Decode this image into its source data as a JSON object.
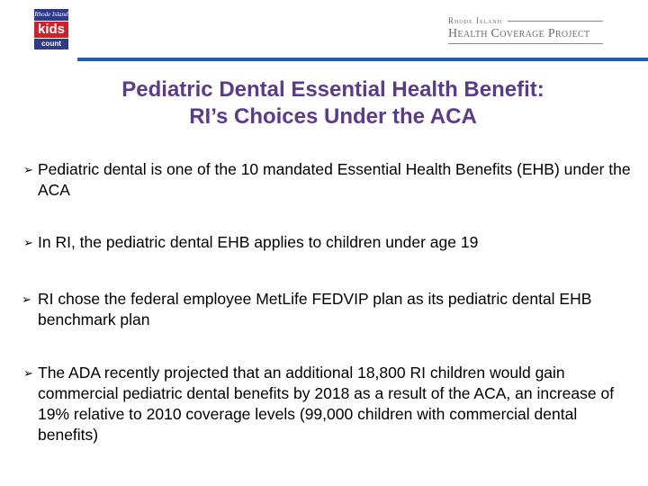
{
  "logo": {
    "top": "Rhode Island",
    "mid": "kids",
    "bot": "count"
  },
  "partner_logo": {
    "line1": "Rhode Island",
    "line2": "Health Coverage Project"
  },
  "title": {
    "line1": "Pediatric Dental Essential Health Benefit:",
    "line2": "RI’s Choices Under the ACA"
  },
  "bullets": [
    {
      "text": "Pediatric dental is one of the 10 mandated Essential Health Benefits (EHB) under the ACA"
    },
    {
      "text": "In RI, the pediatric dental EHB applies to children under age 19"
    },
    {
      "text": "RI chose the federal employee MetLife FEDVIP plan as its pediatric dental EHB benchmark plan"
    },
    {
      "text": "The ADA recently projected that an additional 18,800 RI children would gain commercial pediatric dental benefits by 2018 as a result of the ACA, an increase of 19% relative to 2010 coverage levels (99,000 children with commercial dental benefits)"
    }
  ],
  "colors": {
    "title": "#5a3b8c",
    "rule": "#1f5eb0",
    "logo_blue": "#2e3a87",
    "logo_red": "#d21f2b"
  }
}
